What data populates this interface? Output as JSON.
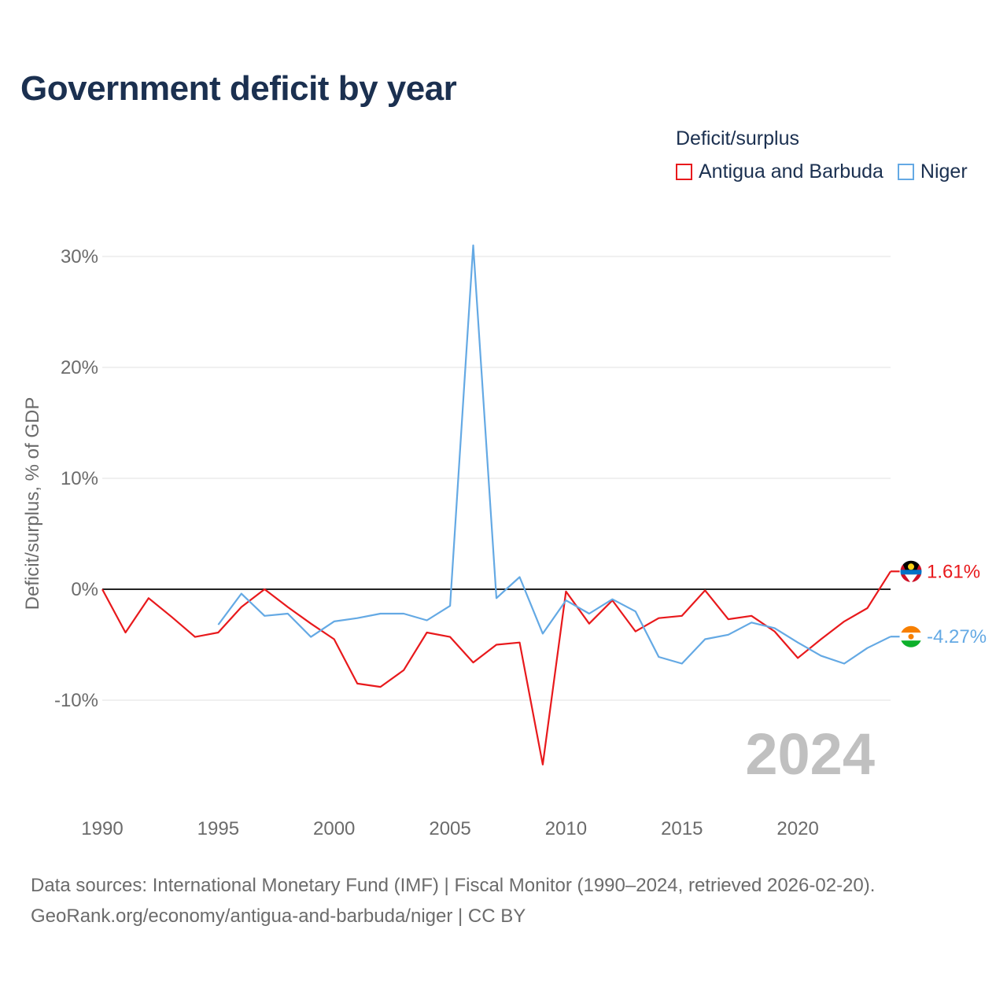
{
  "title": "Government deficit by year",
  "legend": {
    "title": "Deficit/surplus",
    "items": [
      {
        "name": "Antigua and Barbuda",
        "color": "#e8191c"
      },
      {
        "name": "Niger",
        "color": "#64a9e4"
      }
    ]
  },
  "chart_data": {
    "type": "line",
    "title": "Government deficit by year",
    "xlabel": "",
    "ylabel": "Deficit/surplus, % of GDP",
    "xlim": [
      1990,
      2024
    ],
    "ylim": [
      -18.5,
      32
    ],
    "xticks": [
      1990,
      1995,
      2000,
      2005,
      2010,
      2015,
      2020
    ],
    "yticks": [
      {
        "value": 30,
        "label": "30%"
      },
      {
        "value": 20,
        "label": "20%"
      },
      {
        "value": 10,
        "label": "10%"
      },
      {
        "value": 0,
        "label": "0%"
      },
      {
        "value": -10,
        "label": "-10%"
      }
    ],
    "grid": true,
    "year_watermark": "2024",
    "series": [
      {
        "name": "Antigua and Barbuda",
        "color": "#e8191c",
        "end_label": "1.61%",
        "x": [
          1990,
          1991,
          1992,
          1993,
          1994,
          1995,
          1996,
          1997,
          1998,
          1999,
          2000,
          2001,
          2002,
          2003,
          2004,
          2005,
          2006,
          2007,
          2008,
          2009,
          2010,
          2011,
          2012,
          2013,
          2014,
          2015,
          2016,
          2017,
          2018,
          2019,
          2020,
          2021,
          2022,
          2023,
          2024
        ],
        "values": [
          0.0,
          -3.9,
          -0.8,
          -2.5,
          -4.3,
          -3.9,
          -1.6,
          0.0,
          -1.6,
          -3.1,
          -4.5,
          -8.5,
          -8.8,
          -7.3,
          -3.9,
          -4.3,
          -6.6,
          -5.0,
          -4.8,
          -15.8,
          -0.2,
          -3.1,
          -1.0,
          -3.8,
          -2.6,
          -2.4,
          -0.1,
          -2.7,
          -2.4,
          -3.8,
          -6.2,
          -4.5,
          -2.9,
          -1.7,
          1.61
        ]
      },
      {
        "name": "Niger",
        "color": "#64a9e4",
        "end_label": "-4.27%",
        "x": [
          1995,
          1996,
          1997,
          1998,
          1999,
          2000,
          2001,
          2002,
          2003,
          2004,
          2005,
          2006,
          2007,
          2008,
          2009,
          2010,
          2011,
          2012,
          2013,
          2014,
          2015,
          2016,
          2017,
          2018,
          2019,
          2020,
          2021,
          2022,
          2023,
          2024
        ],
        "values": [
          -3.2,
          -0.4,
          -2.4,
          -2.2,
          -4.3,
          -2.9,
          -2.6,
          -2.2,
          -2.2,
          -2.8,
          -1.5,
          31.0,
          -0.8,
          1.1,
          -4.0,
          -1.0,
          -2.2,
          -0.9,
          -2.0,
          -6.1,
          -6.7,
          -4.5,
          -4.1,
          -3.0,
          -3.5,
          -4.8,
          -6.0,
          -6.7,
          -5.3,
          -4.27
        ]
      }
    ]
  },
  "source": {
    "line1": "Data sources: International Monetary Fund (IMF) | Fiscal Monitor (1990–2024, retrieved 2026-02-20).",
    "line2": "GeoRank.org/economy/antigua-and-barbuda/niger | CC BY"
  }
}
